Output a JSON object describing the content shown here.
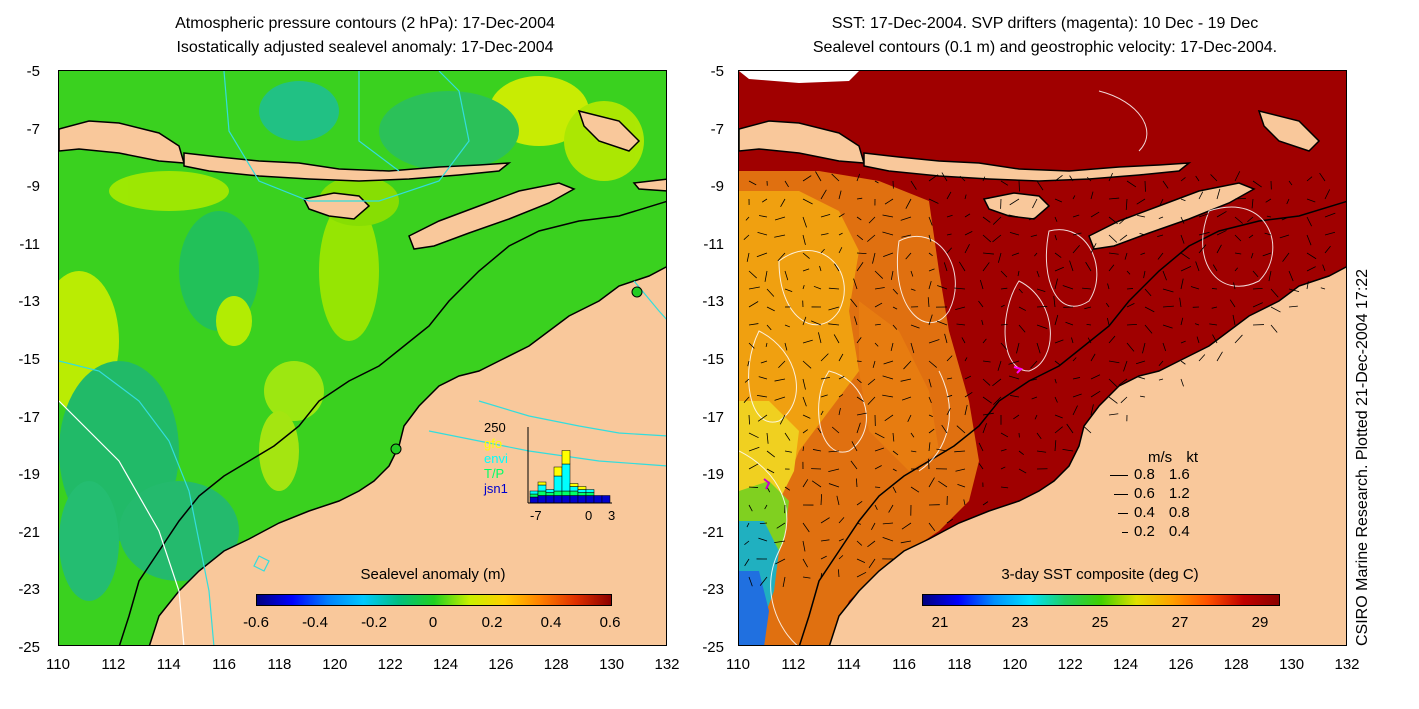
{
  "left": {
    "title_line1": "Atmospheric pressure contours (2 hPa): 17-Dec-2004",
    "title_line2": "Isostatically adjusted sealevel anomaly: 17-Dec-2004",
    "colorbar": {
      "title": "Sealevel anomaly (m)",
      "ticks": [
        "-0.6",
        "-0.4",
        "-0.2",
        "0",
        "0.2",
        "0.4",
        "0.6"
      ]
    },
    "inset": {
      "ymax_label": "250",
      "legend": [
        {
          "label": "gfo",
          "color": "#ffff00"
        },
        {
          "label": "envi",
          "color": "#00ffff"
        },
        {
          "label": "T/P",
          "color": "#00ff66"
        },
        {
          "label": "jsn1",
          "color": "#0000cc"
        }
      ],
      "xticks": [
        "-7",
        "0",
        "3"
      ],
      "bars": [
        {
          "total": 40,
          "jsn1": 20,
          "tp": 10,
          "envi": 10,
          "gfo": 0
        },
        {
          "total": 70,
          "jsn1": 25,
          "tp": 15,
          "envi": 20,
          "gfo": 10
        },
        {
          "total": 45,
          "jsn1": 25,
          "tp": 10,
          "envi": 10,
          "gfo": 0
        },
        {
          "total": 120,
          "jsn1": 25,
          "tp": 15,
          "envi": 50,
          "gfo": 30
        },
        {
          "total": 175,
          "jsn1": 25,
          "tp": 15,
          "envi": 90,
          "gfo": 45
        },
        {
          "total": 65,
          "jsn1": 25,
          "tp": 15,
          "envi": 15,
          "gfo": 10
        },
        {
          "total": 55,
          "jsn1": 25,
          "tp": 10,
          "envi": 10,
          "gfo": 10
        },
        {
          "total": 45,
          "jsn1": 25,
          "tp": 10,
          "envi": 10,
          "gfo": 0
        },
        {
          "total": 25,
          "jsn1": 25,
          "tp": 0,
          "envi": 0,
          "gfo": 0
        },
        {
          "total": 25,
          "jsn1": 25,
          "tp": 0,
          "envi": 0,
          "gfo": 0
        }
      ]
    }
  },
  "right": {
    "title_line1": "SST: 17-Dec-2004. SVP drifters (magenta): 10 Dec - 19 Dec",
    "title_line2": "Sealevel contours (0.1 m) and geostrophic velocity: 17-Dec-2004.",
    "colorbar": {
      "title": "3-day SST composite (deg C)",
      "ticks": [
        "21",
        "23",
        "25",
        "27",
        "29"
      ]
    },
    "scale": {
      "header_ms": "m/s",
      "header_kt": "kt",
      "rows": [
        {
          "ms": "0.8",
          "kt": "1.6"
        },
        {
          "ms": "0.6",
          "kt": "1.2"
        },
        {
          "ms": "0.4",
          "kt": "0.8"
        },
        {
          "ms": "0.2",
          "kt": "0.4"
        }
      ]
    }
  },
  "axes": {
    "x_ticks": [
      "110",
      "112",
      "114",
      "116",
      "118",
      "120",
      "122",
      "124",
      "126",
      "128",
      "130",
      "132"
    ],
    "y_ticks": [
      "-5",
      "-7",
      "-9",
      "-11",
      "-13",
      "-15",
      "-17",
      "-19",
      "-21",
      "-23",
      "-25"
    ],
    "lon_range": [
      110,
      132
    ],
    "lat_range": [
      -25,
      -5
    ]
  },
  "credit": "CSIRO Marine Research. Plotted 21-Dec-2004 17:22",
  "colors": {
    "land": "#f9c89b",
    "ocean_green": "#22cc22",
    "sst_hot": "#a00000",
    "contour_cyan": "#33dddd"
  }
}
